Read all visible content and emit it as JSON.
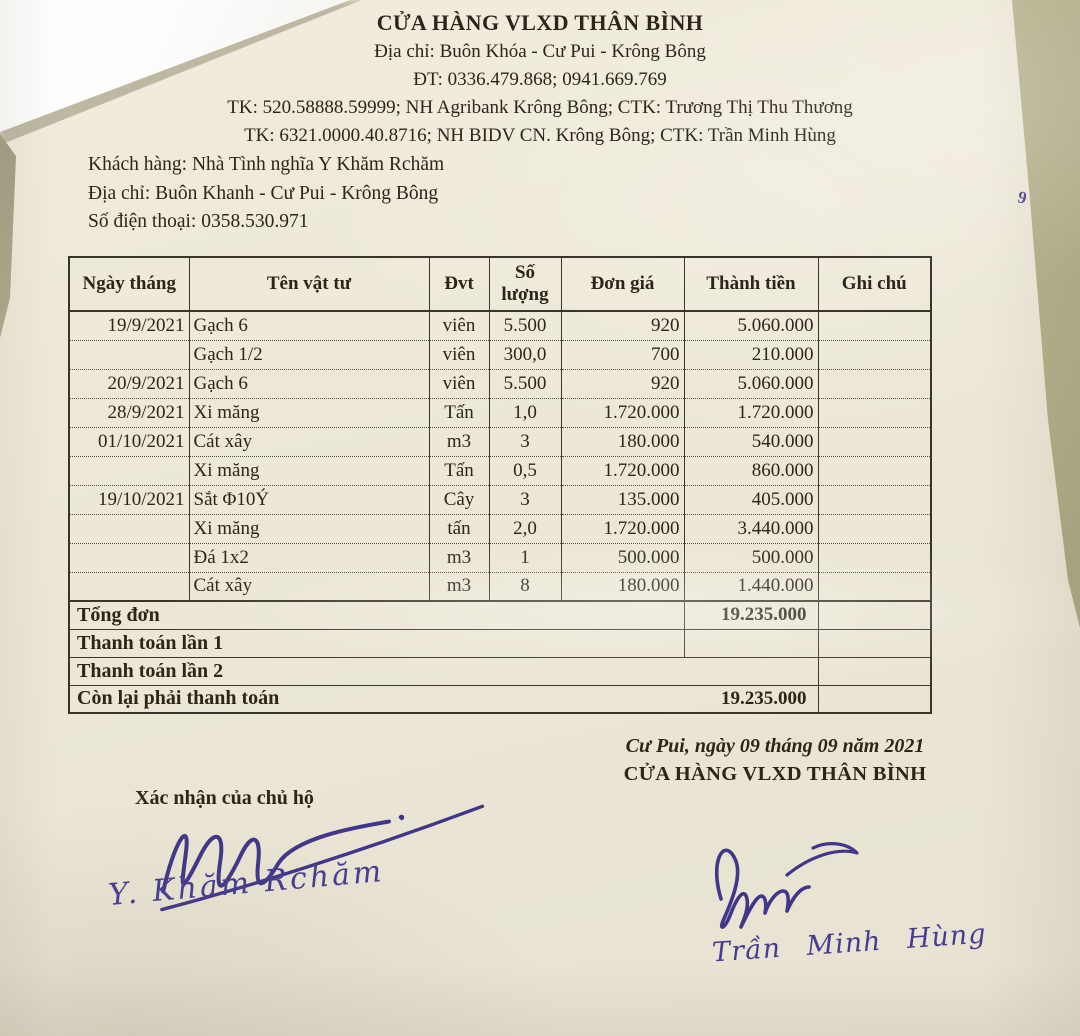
{
  "store": {
    "name": "CỬA HÀNG VLXD THÂN BÌNH",
    "address": "Địa chỉ: Buôn Khóa - Cư Pui - Krông Bông",
    "phone": "ĐT: 0336.479.868; 0941.669.769",
    "bank_account_1": "TK: 520.58888.59999; NH Agribank Krông Bông; CTK: Trương Thị Thu Thương",
    "bank_account_2": "TK: 6321.0000.40.8716; NH BIDV CN. Krông Bông; CTK: Trần Minh Hùng"
  },
  "customer": {
    "name": "Khách hàng:  Nhà Tình nghĩa Y Khăm Rchăm",
    "address": "Địa chỉ: Buôn Khanh - Cư Pui - Krông Bông",
    "phone": "Số điện thoại: 0358.530.971"
  },
  "table": {
    "headers": [
      "Ngày tháng",
      "Tên vật tư",
      "Đvt",
      "Số lượng",
      "Đơn giá",
      "Thành tiền",
      "Ghi chú"
    ],
    "rows": [
      {
        "date": "19/9/2021",
        "item": "Gạch 6",
        "unit": "viên",
        "qty": "5.500",
        "price": "920",
        "amount": "5.060.000",
        "note": ""
      },
      {
        "date": "",
        "item": "Gạch 1/2",
        "unit": "viên",
        "qty": "300,0",
        "price": "700",
        "amount": "210.000",
        "note": ""
      },
      {
        "date": "20/9/2021",
        "item": "Gạch 6",
        "unit": "viên",
        "qty": "5.500",
        "price": "920",
        "amount": "5.060.000",
        "note": ""
      },
      {
        "date": "28/9/2021",
        "item": "Xi măng",
        "unit": "Tấn",
        "qty": "1,0",
        "price": "1.720.000",
        "amount": "1.720.000",
        "note": ""
      },
      {
        "date": "01/10/2021",
        "item": "Cát xây",
        "unit": "m3",
        "qty": "3",
        "price": "180.000",
        "amount": "540.000",
        "note": ""
      },
      {
        "date": "",
        "item": "Xi măng",
        "unit": "Tấn",
        "qty": "0,5",
        "price": "1.720.000",
        "amount": "860.000",
        "note": ""
      },
      {
        "date": "19/10/2021",
        "item": "Sắt Φ10Ý",
        "unit": "Cây",
        "qty": "3",
        "price": "135.000",
        "amount": "405.000",
        "note": ""
      },
      {
        "date": "",
        "item": "Xi măng",
        "unit": "tấn",
        "qty": "2,0",
        "price": "1.720.000",
        "amount": "3.440.000",
        "note": ""
      },
      {
        "date": "",
        "item": "Đá 1x2",
        "unit": "m3",
        "qty": "1",
        "price": "500.000",
        "amount": "500.000",
        "note": ""
      },
      {
        "date": "",
        "item": "Cát xây",
        "unit": "m3",
        "qty": "8",
        "price": "180.000",
        "amount": "1.440.000",
        "note": ""
      }
    ],
    "summary": [
      {
        "label": "Tổng đơn",
        "amount": "19.235.000",
        "note": ""
      },
      {
        "label": "Thanh toán lần 1",
        "amount": "",
        "note": ""
      },
      {
        "label": "Thanh toán lần 2",
        "amount": "",
        "note": ""
      },
      {
        "label": "Còn lại phải thanh toán",
        "amount": "19.235.000",
        "note": ""
      }
    ]
  },
  "signoff": {
    "place_date": "Cư Pui, ngày 09 tháng 09 năm 2021",
    "store_name": "CỬA HÀNG VLXD THÂN BÌNH",
    "confirm_label": "Xác nhận của chủ hộ",
    "customer_signed_name": "Y. Khăm Rchăm",
    "seller_signed_name": "Trần Minh Hùng",
    "edge_mark": "9"
  },
  "colors": {
    "paper": "#ece7d6",
    "printed_ink": "#2b2619",
    "pen_ink": "#40368a",
    "desk_surface": "#b1ae88",
    "under_sheet": "#fdfdfc"
  }
}
